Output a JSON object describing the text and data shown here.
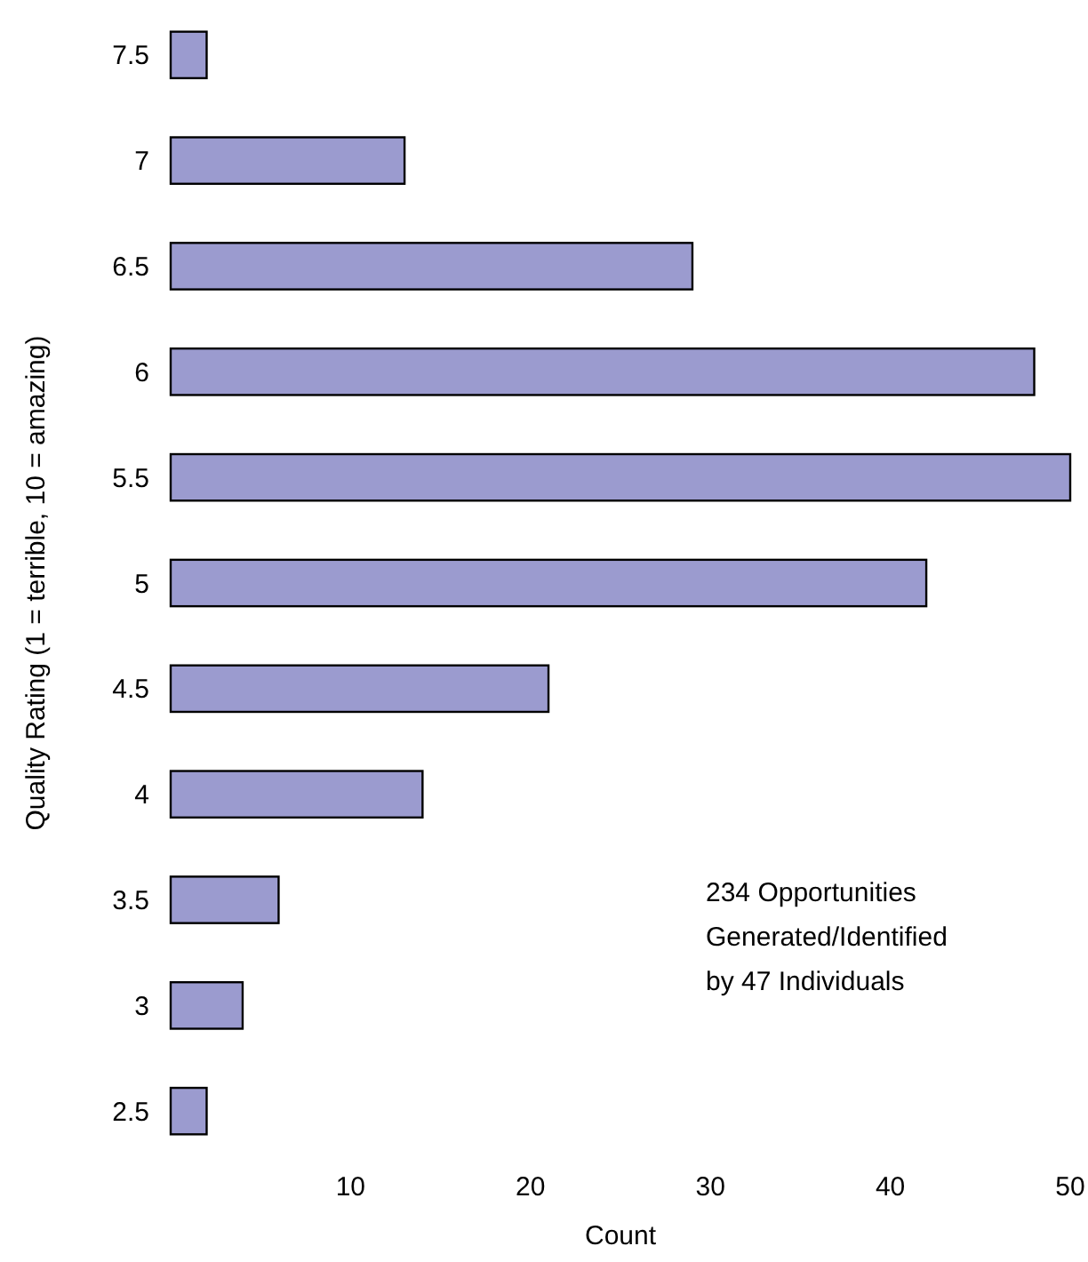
{
  "chart_data": {
    "type": "bar",
    "orientation": "horizontal",
    "xlabel": "Count",
    "ylabel": "Quality Rating (1 = terrible, 10 = amazing)",
    "categories": [
      "7.5",
      "7",
      "6.5",
      "6",
      "5.5",
      "5",
      "4.5",
      "4",
      "3.5",
      "3",
      "2.5"
    ],
    "values": [
      2,
      13,
      29,
      48,
      50,
      42,
      21,
      14,
      6,
      4,
      2
    ],
    "color": "#9b9bcf",
    "xlim": [
      0,
      50
    ],
    "xticks": [
      10,
      20,
      30,
      40,
      50
    ],
    "annotations": [
      "234 Opportunities\nGenerated/Identified\nby 47 Individuals"
    ]
  }
}
